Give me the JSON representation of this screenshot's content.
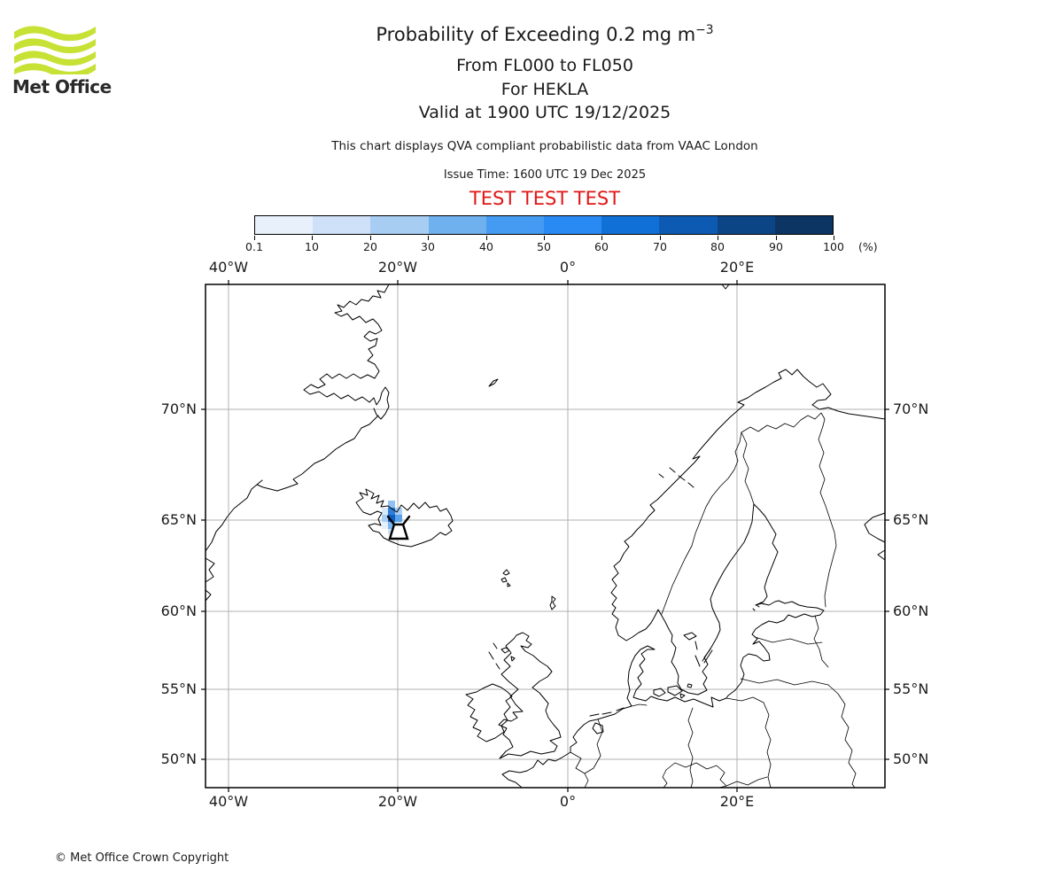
{
  "logo": {
    "label": "Met Office",
    "wave_color": "#c8e135",
    "text_color": "#2a2a2a"
  },
  "header": {
    "title_main": "Probability of Exceeding 0.2 mg m",
    "title_superscript": "−3",
    "level_line": "From FL000 to FL050",
    "volcano_line": "For HEKLA",
    "valid_line": "Valid at 1900 UTC 19/12/2025",
    "note": "This chart displays QVA compliant probabilistic data from VAAC London",
    "issue_time": "Issue Time: 1600 UTC 19 Dec 2025",
    "test_banner": "TEST TEST TEST",
    "test_color": "#e01616"
  },
  "colorbar": {
    "unit_label": "(%)",
    "tick_labels": [
      "0.1",
      "10",
      "20",
      "30",
      "40",
      "50",
      "60",
      "70",
      "80",
      "90",
      "100"
    ],
    "segment_colors": [
      "#e8f1fb",
      "#cfe1f8",
      "#a8cdf3",
      "#6fb0ee",
      "#459bf1",
      "#2a8af3",
      "#1170d8",
      "#0d5ab2",
      "#0b4586",
      "#0c3564"
    ]
  },
  "map_axes": {
    "top": [
      "40°W",
      "20°W",
      "0°",
      "20°E"
    ],
    "bottom": [
      "40°W",
      "20°W",
      "0°",
      "20°E"
    ],
    "left": [
      "70°N",
      "65°N",
      "60°N",
      "55°N",
      "50°N"
    ],
    "right": [
      "70°N",
      "65°N",
      "60°N",
      "55°N",
      "50°N"
    ]
  },
  "footer": {
    "copyright": "© Met Office Crown Copyright"
  },
  "chart_data": {
    "type": "probability-map",
    "title": "Probability of Exceeding 0.2 mg m⁻³",
    "flight_levels": "FL000 to FL050",
    "volcano": "HEKLA",
    "valid_time": "1900 UTC 19/12/2025",
    "issue_time": "1600 UTC 19 Dec 2025",
    "source_note": "QVA compliant probabilistic data from VAAC London",
    "status": "TEST",
    "legend_percent_bins": [
      0.1,
      10,
      20,
      30,
      40,
      50,
      60,
      70,
      80,
      90,
      100
    ],
    "legend_unit": "%",
    "projection": "Mercator",
    "map_extent": {
      "lon_min": -42.7,
      "lon_max": 37.6,
      "lat_min": 47.8,
      "lat_max": 74.5
    },
    "gridline_lons_deg": [
      -40,
      -20,
      0,
      20
    ],
    "gridline_lats_deg": [
      70,
      65,
      60,
      55,
      50
    ],
    "plume": {
      "location": "southwest Iceland near Hekla (approx 64.3°N, 19.8°W)",
      "extent_deg": "about 2° of longitude by 1° of latitude",
      "max_probability_bin_percent": "60–80",
      "outer_probability_bin_percent": "0.1–20"
    },
    "volcano_marker": {
      "name": "Hekla",
      "approx_lat": 64.0,
      "approx_lon": -19.7
    }
  }
}
